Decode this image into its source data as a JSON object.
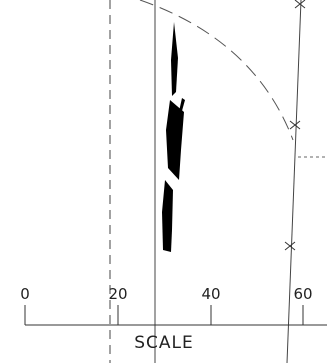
{
  "scale_bar": {
    "title": "SCALE",
    "tick_labels": [
      "0",
      "20",
      "40",
      "60"
    ]
  },
  "colors": {
    "line": "#444444",
    "fill": "#000000",
    "background": "#ffffff"
  }
}
